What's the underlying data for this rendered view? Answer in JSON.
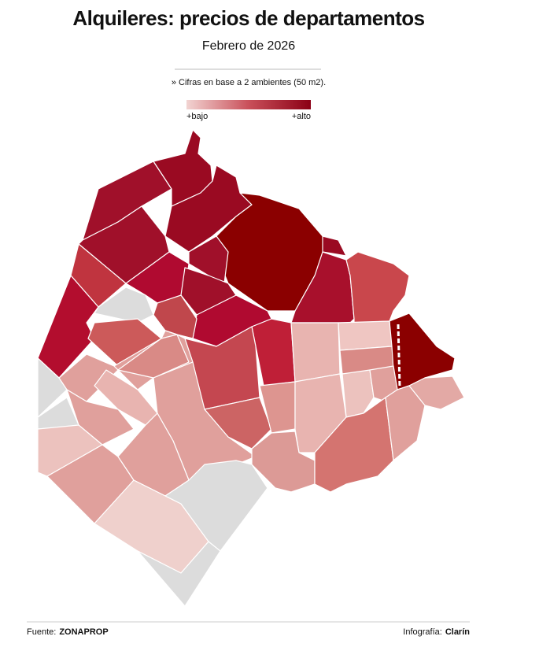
{
  "header": {
    "title": "Alquileres: precios de departamentos",
    "subtitle": "Febrero de 2026"
  },
  "note": "» Cifras en base a 2 ambientes (50 m2).",
  "legend": {
    "low": "+bajo",
    "high": "+alto"
  },
  "footer": {
    "source_label": "Fuente:",
    "source": "ZONAPROP",
    "credit_label": "Infografía:",
    "credit": "Clarín"
  }
}
